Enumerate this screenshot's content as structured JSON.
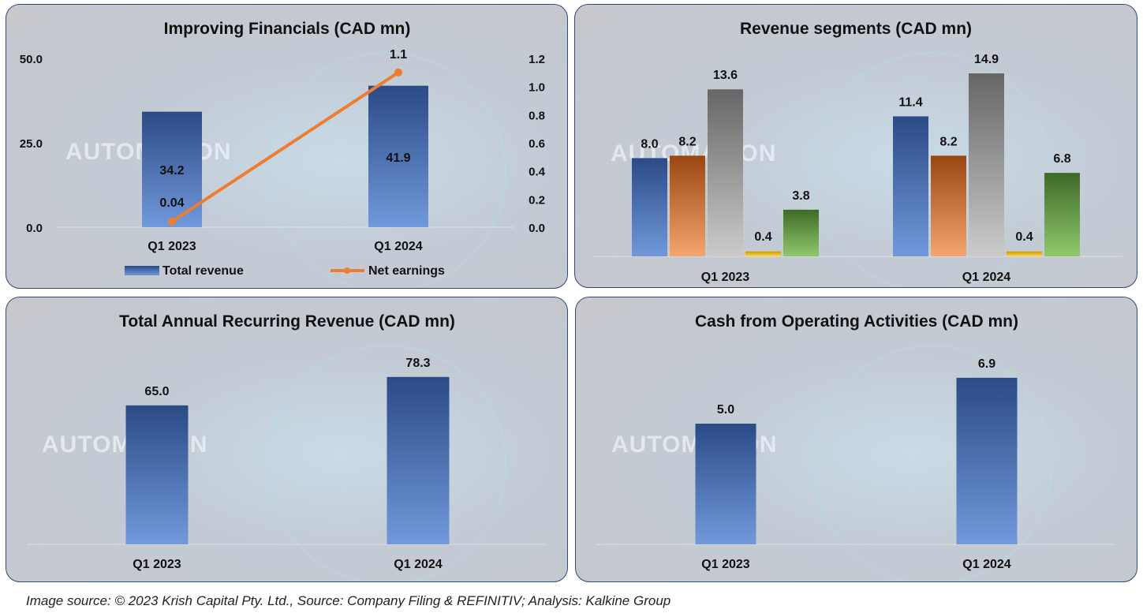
{
  "colors": {
    "blue": [
      "#2b4a86",
      "#7199db"
    ],
    "orange": [
      "#9a4612",
      "#f5a56e"
    ],
    "gray": [
      "#666666",
      "#cbcbcb"
    ],
    "yellow": [
      "#c99a00",
      "#ffd84d"
    ],
    "green": [
      "#3e6a28",
      "#90c96c"
    ],
    "line": "#ed7d31",
    "border": "#2f4a7a"
  },
  "watermark": "AUTOMATION",
  "chart_data": [
    {
      "type": "bar+line",
      "title": "Improving Financials (CAD mn)",
      "categories": [
        "Q1 2023",
        "Q1 2024"
      ],
      "left_axis": {
        "ylim": [
          0,
          50
        ],
        "ticks": [
          "0.0",
          "25.0",
          "50.0"
        ]
      },
      "right_axis": {
        "ylim": [
          0,
          1.2
        ],
        "ticks": [
          "0.0",
          "0.2",
          "0.4",
          "0.6",
          "0.8",
          "1.0",
          "1.2"
        ]
      },
      "series": [
        {
          "name": "Total revenue",
          "type": "bar",
          "axis": "left",
          "values": [
            34.2,
            41.9
          ],
          "labels": [
            "34.2",
            "41.9"
          ]
        },
        {
          "name": "Net earnings",
          "type": "line",
          "axis": "right",
          "values": [
            0.04,
            1.1
          ],
          "labels": [
            "0.04",
            "1.1"
          ]
        }
      ],
      "legend": "bottom"
    },
    {
      "type": "bar",
      "title": "Revenue segments (CAD mn)",
      "categories": [
        "Q1 2023",
        "Q1 2024"
      ],
      "series": [
        {
          "color": "blue",
          "values": [
            8.0,
            11.4
          ],
          "labels": [
            "8.0",
            "11.4"
          ]
        },
        {
          "color": "orange",
          "values": [
            8.2,
            8.2
          ],
          "labels": [
            "8.2",
            "8.2"
          ]
        },
        {
          "color": "gray",
          "values": [
            13.6,
            14.9
          ],
          "labels": [
            "13.6",
            "14.9"
          ]
        },
        {
          "color": "yellow",
          "values": [
            0.4,
            0.4
          ],
          "labels": [
            "0.4",
            "0.4"
          ]
        },
        {
          "color": "green",
          "values": [
            3.8,
            6.8
          ],
          "labels": [
            "3.8",
            "6.8"
          ]
        }
      ]
    },
    {
      "type": "bar",
      "title": "Total Annual Recurring Revenue (CAD mn)",
      "categories": [
        "Q1 2023",
        "Q1 2024"
      ],
      "values": [
        65.0,
        78.3
      ],
      "labels": [
        "65.0",
        "78.3"
      ]
    },
    {
      "type": "bar",
      "title": "Cash from Operating Activities (CAD mn)",
      "categories": [
        "Q1 2023",
        "Q1 2024"
      ],
      "values": [
        5.0,
        6.9
      ],
      "labels": [
        "5.0",
        "6.9"
      ]
    }
  ],
  "footer": "Image source: © 2023 Krish Capital Pty. Ltd., Source: Company Filing & REFINITIV; Analysis: Kalkine Group"
}
